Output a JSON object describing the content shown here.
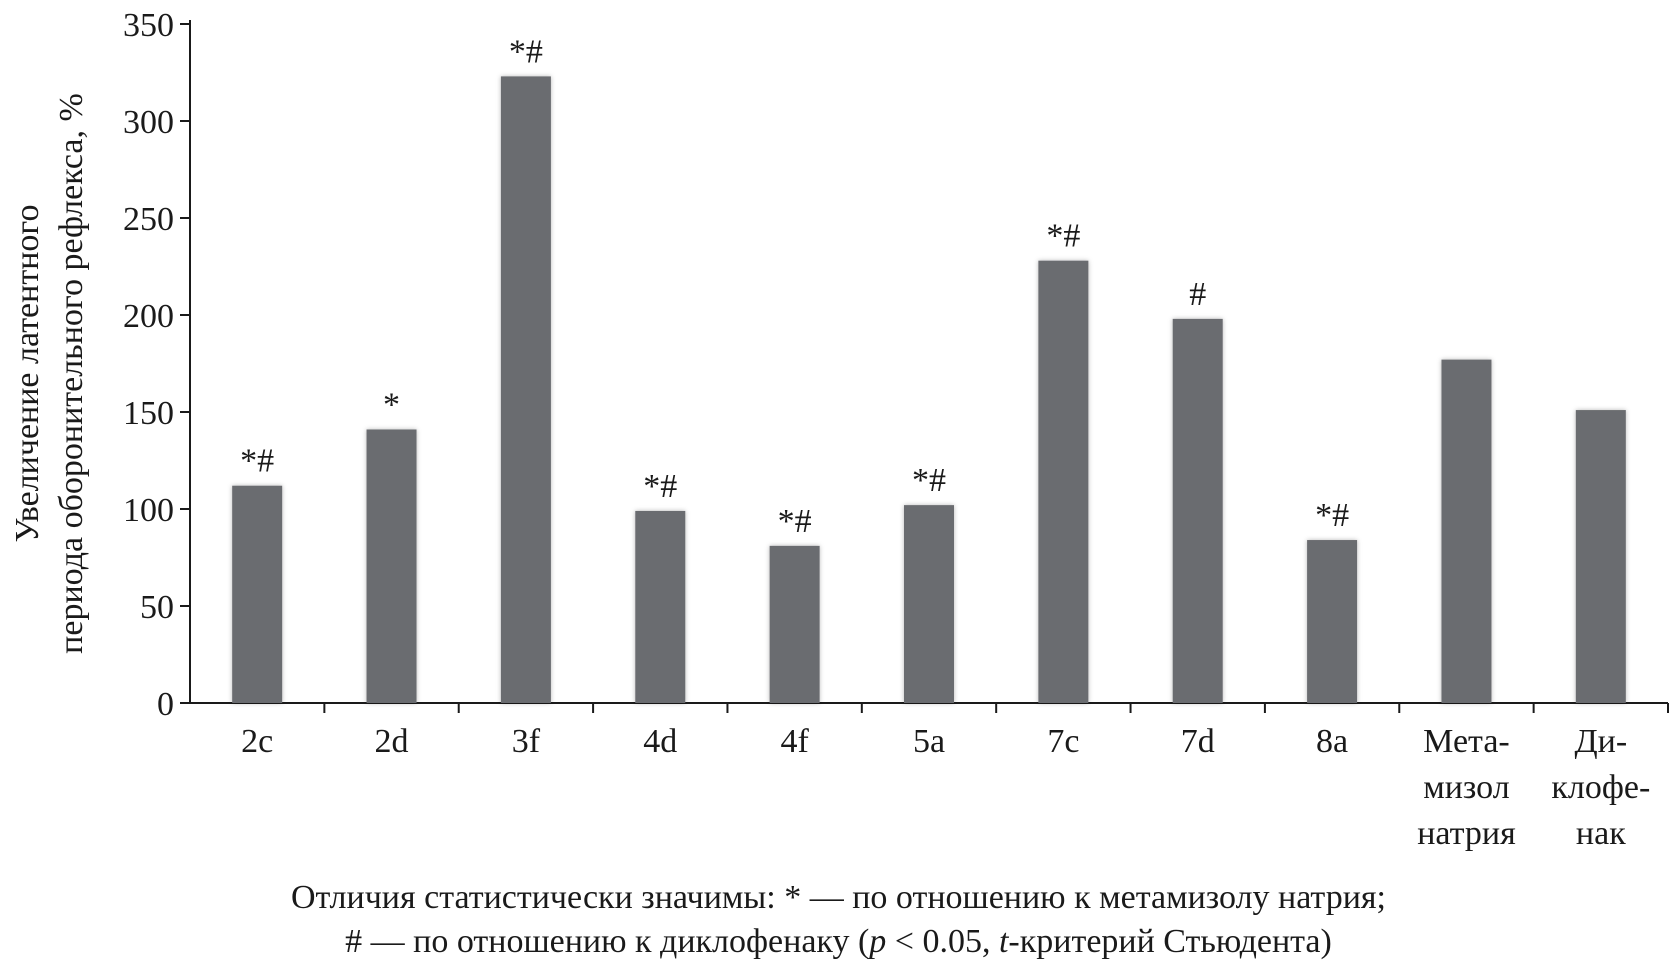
{
  "chart_data": {
    "type": "bar",
    "ylabel_lines": [
      "Увеличение латентного",
      "периода оборонительного рефлекса, %"
    ],
    "ylim": [
      0,
      350
    ],
    "yticks": [
      0,
      50,
      100,
      150,
      200,
      250,
      300,
      350
    ],
    "categories": [
      [
        "2c"
      ],
      [
        "2d"
      ],
      [
        "3f"
      ],
      [
        "4d"
      ],
      [
        "4f"
      ],
      [
        "5a"
      ],
      [
        "7c"
      ],
      [
        "7d"
      ],
      [
        "8a"
      ],
      [
        "Мета-",
        "мизол",
        "натрия"
      ],
      [
        "Ди-",
        "клофе-",
        "нак"
      ]
    ],
    "values": [
      112,
      141,
      323,
      99,
      81,
      102,
      228,
      198,
      84,
      177,
      151
    ],
    "annotations": [
      "*#",
      "*",
      "*#",
      "*#",
      "*#",
      "*#",
      "*#",
      "#",
      "*#",
      "",
      ""
    ],
    "bar_color": "#6b6c70",
    "grid": false
  },
  "footnote": {
    "line1": "Отличия статистически значимы: * — по отношению к метамизолу натрия;",
    "line2_before_p": "# — по отношению к диклофенаку (",
    "p_symbol": "p",
    "line2_mid": " < 0.05, ",
    "t_symbol": "t",
    "line2_end": "-критерий Стьюдента)"
  }
}
